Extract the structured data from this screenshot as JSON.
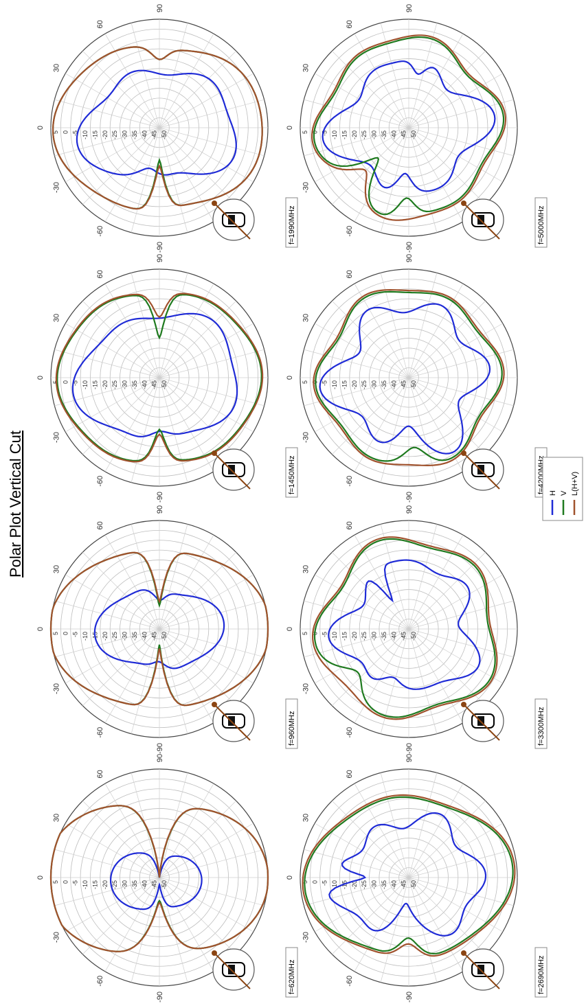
{
  "title": "Polar Plot Vertical Cut",
  "legend": {
    "items": [
      {
        "label": "H",
        "color": "#1f2bd6"
      },
      {
        "label": "V",
        "color": "#1f7a1f"
      },
      {
        "label": "L(H+V)",
        "color": "#a0522d"
      }
    ]
  },
  "radial_ticks": [
    "5",
    "0",
    "-5",
    "-10",
    "-15",
    "-20",
    "-25",
    "-30",
    "-35",
    "-40",
    "-45",
    "-50"
  ],
  "angle_labels": {
    "zero": "0",
    "thirty": "30",
    "sixty": "60",
    "ninety": "90",
    "neg_thirty": "-30",
    "neg_sixty": "-60",
    "neg_ninety": "-90"
  },
  "chart_data": [
    {
      "type": "polar",
      "frequency_label": "f=620MHz",
      "r_range_db": [
        -50,
        5
      ],
      "angle_unit": "deg",
      "series": [
        {
          "name": "H",
          "base_db": -32,
          "shape": [
            [
              2,
              5,
              0
            ],
            [
              1,
              3,
              1.0
            ]
          ],
          "nulls": [
            [
              90,
              18,
              10
            ],
            [
              -90,
              12,
              8
            ]
          ]
        },
        {
          "name": "V",
          "base_db": -3,
          "shape": [
            [
              2,
              10,
              0
            ],
            [
              1,
              2,
              0.4
            ]
          ],
          "nulls": [
            [
              90,
              42,
              9
            ],
            [
              -90,
              26,
              10
            ]
          ]
        },
        {
          "name": "L(H+V)",
          "base_db": -3,
          "shape": [
            [
              2,
              10,
              0
            ],
            [
              1,
              2,
              0.4
            ]
          ],
          "nulls": [
            [
              90,
              40,
              9
            ],
            [
              -90,
              25,
              10
            ]
          ]
        }
      ]
    },
    {
      "type": "polar",
      "frequency_label": "f=960MHz",
      "r_range_db": [
        -50,
        5
      ],
      "angle_unit": "deg",
      "series": [
        {
          "name": "H",
          "base_db": -25,
          "shape": [
            [
              2,
              6,
              0
            ],
            [
              4,
              2,
              0.6
            ]
          ],
          "nulls": [
            [
              90,
              6,
              10
            ],
            [
              -90,
              4,
              10
            ]
          ]
        },
        {
          "name": "V",
          "base_db": -3,
          "shape": [
            [
              2,
              8,
              0
            ],
            [
              4,
              1,
              0.2
            ]
          ],
          "nulls": [
            [
              90,
              28,
              6
            ],
            [
              -90,
              32,
              6
            ]
          ]
        },
        {
          "name": "L(H+V)",
          "base_db": -3,
          "shape": [
            [
              2,
              8,
              0
            ],
            [
              4,
              1,
              0.2
            ]
          ],
          "nulls": [
            [
              90,
              26,
              6
            ],
            [
              -90,
              30,
              6
            ]
          ]
        }
      ]
    },
    {
      "type": "polar",
      "frequency_label": "f=1450MHz",
      "r_range_db": [
        -50,
        5
      ],
      "angle_unit": "deg",
      "series": [
        {
          "name": "H",
          "base_db": -14,
          "shape": [
            [
              2,
              5,
              0.3
            ],
            [
              5,
              2,
              1.1
            ],
            [
              3,
              1.5,
              0.5
            ]
          ],
          "nulls": [
            [
              -90,
              5,
              10
            ]
          ]
        },
        {
          "name": "V",
          "base_db": -3,
          "shape": [
            [
              2,
              4,
              0
            ],
            [
              6,
              0.8,
              0.3
            ]
          ],
          "nulls": [
            [
              90,
              22,
              5
            ],
            [
              -90,
              16,
              5
            ]
          ]
        },
        {
          "name": "L(H+V)",
          "base_db": -2.5,
          "shape": [
            [
              2,
              4,
              0
            ],
            [
              6,
              0.8,
              0.3
            ]
          ],
          "nulls": [
            [
              90,
              12,
              5
            ],
            [
              -90,
              14,
              5
            ]
          ]
        }
      ]
    },
    {
      "type": "polar",
      "frequency_label": "f=1990MHz",
      "r_range_db": [
        -50,
        5
      ],
      "angle_unit": "deg",
      "series": [
        {
          "name": "H",
          "base_db": -17,
          "shape": [
            [
              2,
              6,
              0.2
            ],
            [
              5,
              2.5,
              0.8
            ],
            [
              3,
              2,
              1.6
            ]
          ],
          "nulls": [
            [
              -75,
              8,
              12
            ]
          ]
        },
        {
          "name": "V",
          "base_db": -3,
          "shape": [
            [
              2,
              6,
              0
            ],
            [
              5,
              1,
              0.4
            ]
          ],
          "nulls": [
            [
              -90,
              25,
              5
            ],
            [
              90,
              6,
              6
            ]
          ]
        },
        {
          "name": "L(H+V)",
          "base_db": -3,
          "shape": [
            [
              2,
              6,
              0
            ],
            [
              5,
              1,
              0.4
            ]
          ],
          "nulls": [
            [
              -90,
              22,
              5
            ],
            [
              90,
              6,
              6
            ]
          ]
        }
      ]
    },
    {
      "type": "polar",
      "frequency_label": "f=2690MHz",
      "r_range_db": [
        -50,
        5
      ],
      "angle_unit": "deg",
      "series": [
        {
          "name": "H",
          "base_db": -18,
          "shape": [
            [
              2,
              5,
              0.2
            ],
            [
              6,
              4,
              0.4
            ],
            [
              3,
              3,
              1.0
            ]
          ],
          "nulls": [
            [
              0,
              20,
              5
            ],
            [
              -80,
              10,
              10
            ]
          ]
        },
        {
          "name": "V",
          "base_db": -5,
          "shape": [
            [
              2,
              6,
              0.1
            ],
            [
              4,
              2,
              0.6
            ]
          ],
          "nulls": [
            [
              -90,
              10,
              8
            ]
          ]
        },
        {
          "name": "L(H+V)",
          "base_db": -4,
          "shape": [
            [
              2,
              6,
              0.1
            ],
            [
              4,
              2,
              0.6
            ]
          ],
          "nulls": [
            [
              -90,
              8,
              8
            ]
          ]
        }
      ]
    },
    {
      "type": "polar",
      "frequency_label": "f=3300MHz",
      "r_range_db": [
        -50,
        5
      ],
      "angle_unit": "deg",
      "series": [
        {
          "name": "H",
          "base_db": -17,
          "shape": [
            [
              5,
              4,
              0.3
            ],
            [
              3,
              2.5,
              1.0
            ],
            [
              7,
              2,
              0.5
            ]
          ],
          "nulls": [
            [
              60,
              18,
              4
            ],
            [
              -70,
              8,
              10
            ]
          ]
        },
        {
          "name": "V",
          "base_db": -6,
          "shape": [
            [
              5,
              3,
              0.4
            ],
            [
              3,
              1.5,
              1.2
            ]
          ],
          "nulls": [
            [
              -40,
              8,
              10
            ]
          ]
        },
        {
          "name": "L(H+V)",
          "base_db": -5,
          "shape": [
            [
              5,
              3,
              0.4
            ],
            [
              3,
              1.5,
              1.2
            ]
          ],
          "nulls": []
        }
      ]
    },
    {
      "type": "polar",
      "frequency_label": "f=4200MHz",
      "r_range_db": [
        -50,
        5
      ],
      "angle_unit": "deg",
      "series": [
        {
          "name": "H",
          "base_db": -14,
          "shape": [
            [
              6,
              5,
              0.5
            ],
            [
              4,
              3,
              1.1
            ],
            [
              3,
              2,
              0.2
            ]
          ],
          "nulls": [
            [
              -90,
              8,
              10
            ]
          ]
        },
        {
          "name": "V",
          "base_db": -6,
          "shape": [
            [
              6,
              2,
              0.2
            ],
            [
              4,
              1.5,
              0.7
            ]
          ],
          "nulls": [
            [
              -95,
              8,
              8
            ]
          ]
        },
        {
          "name": "L(H+V)",
          "base_db": -5,
          "shape": [
            [
              6,
              2,
              0.2
            ],
            [
              4,
              1.5,
              0.7
            ]
          ],
          "nulls": []
        }
      ]
    },
    {
      "type": "polar",
      "frequency_label": "f=5000MHz",
      "r_range_db": [
        -50,
        5
      ],
      "angle_unit": "deg",
      "series": [
        {
          "name": "H",
          "base_db": -16,
          "shape": [
            [
              4,
              5,
              0.4
            ],
            [
              6,
              3,
              0.9
            ],
            [
              2,
              2,
              0.1
            ]
          ],
          "nulls": [
            [
              -85,
              12,
              8
            ],
            [
              100,
              8,
              6
            ]
          ]
        },
        {
          "name": "V",
          "base_db": -6,
          "shape": [
            [
              4,
              2.5,
              0.2
            ],
            [
              6,
              2,
              1.0
            ]
          ],
          "nulls": [
            [
              -45,
              18,
              8
            ],
            [
              -88,
              10,
              6
            ]
          ]
        },
        {
          "name": "L(H+V)",
          "base_db": -5,
          "shape": [
            [
              4,
              2.5,
              0.2
            ],
            [
              6,
              2,
              1.0
            ]
          ],
          "nulls": [
            [
              -45,
              10,
              8
            ]
          ]
        }
      ]
    }
  ]
}
